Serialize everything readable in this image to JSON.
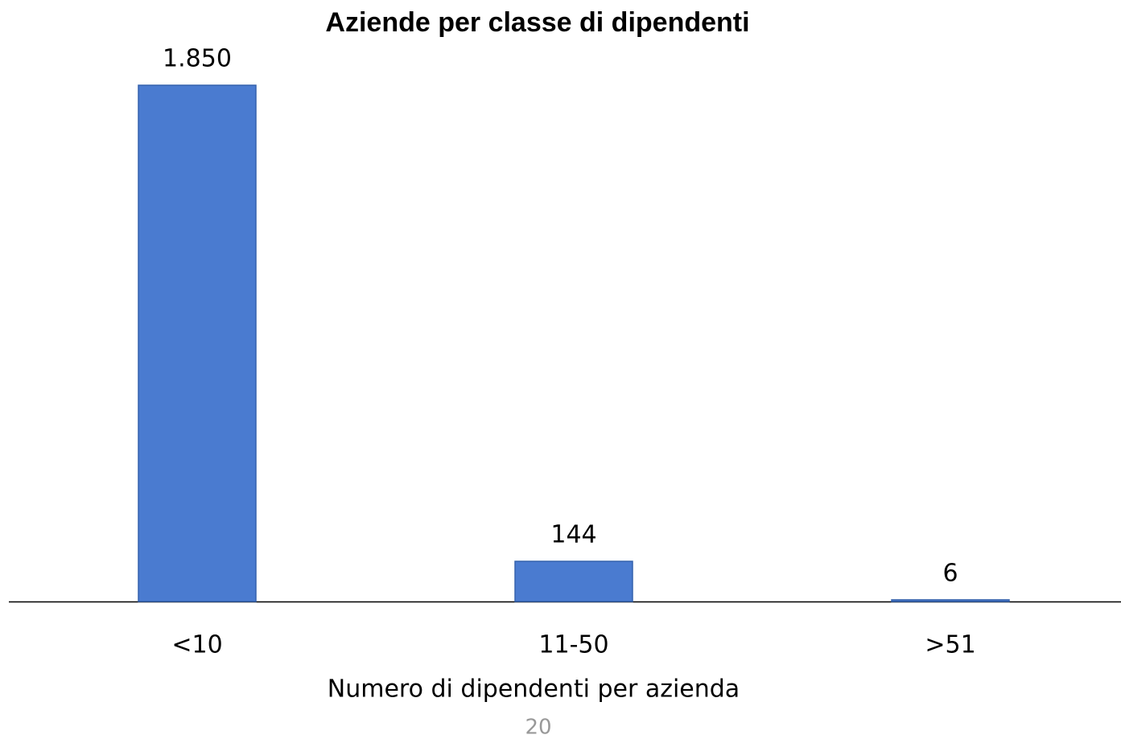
{
  "chart_data": {
    "type": "bar",
    "title": "Aziende per classe di dipendenti",
    "x_label": "Numero di dipendenti per azienda",
    "categories": [
      "<10",
      "11-50",
      ">51"
    ],
    "values": [
      1850,
      144,
      6
    ],
    "value_labels": [
      "1.850",
      "144",
      "6"
    ],
    "color": "#4a7bd0",
    "ylim": [
      0,
      1850
    ]
  },
  "page_number": 20
}
